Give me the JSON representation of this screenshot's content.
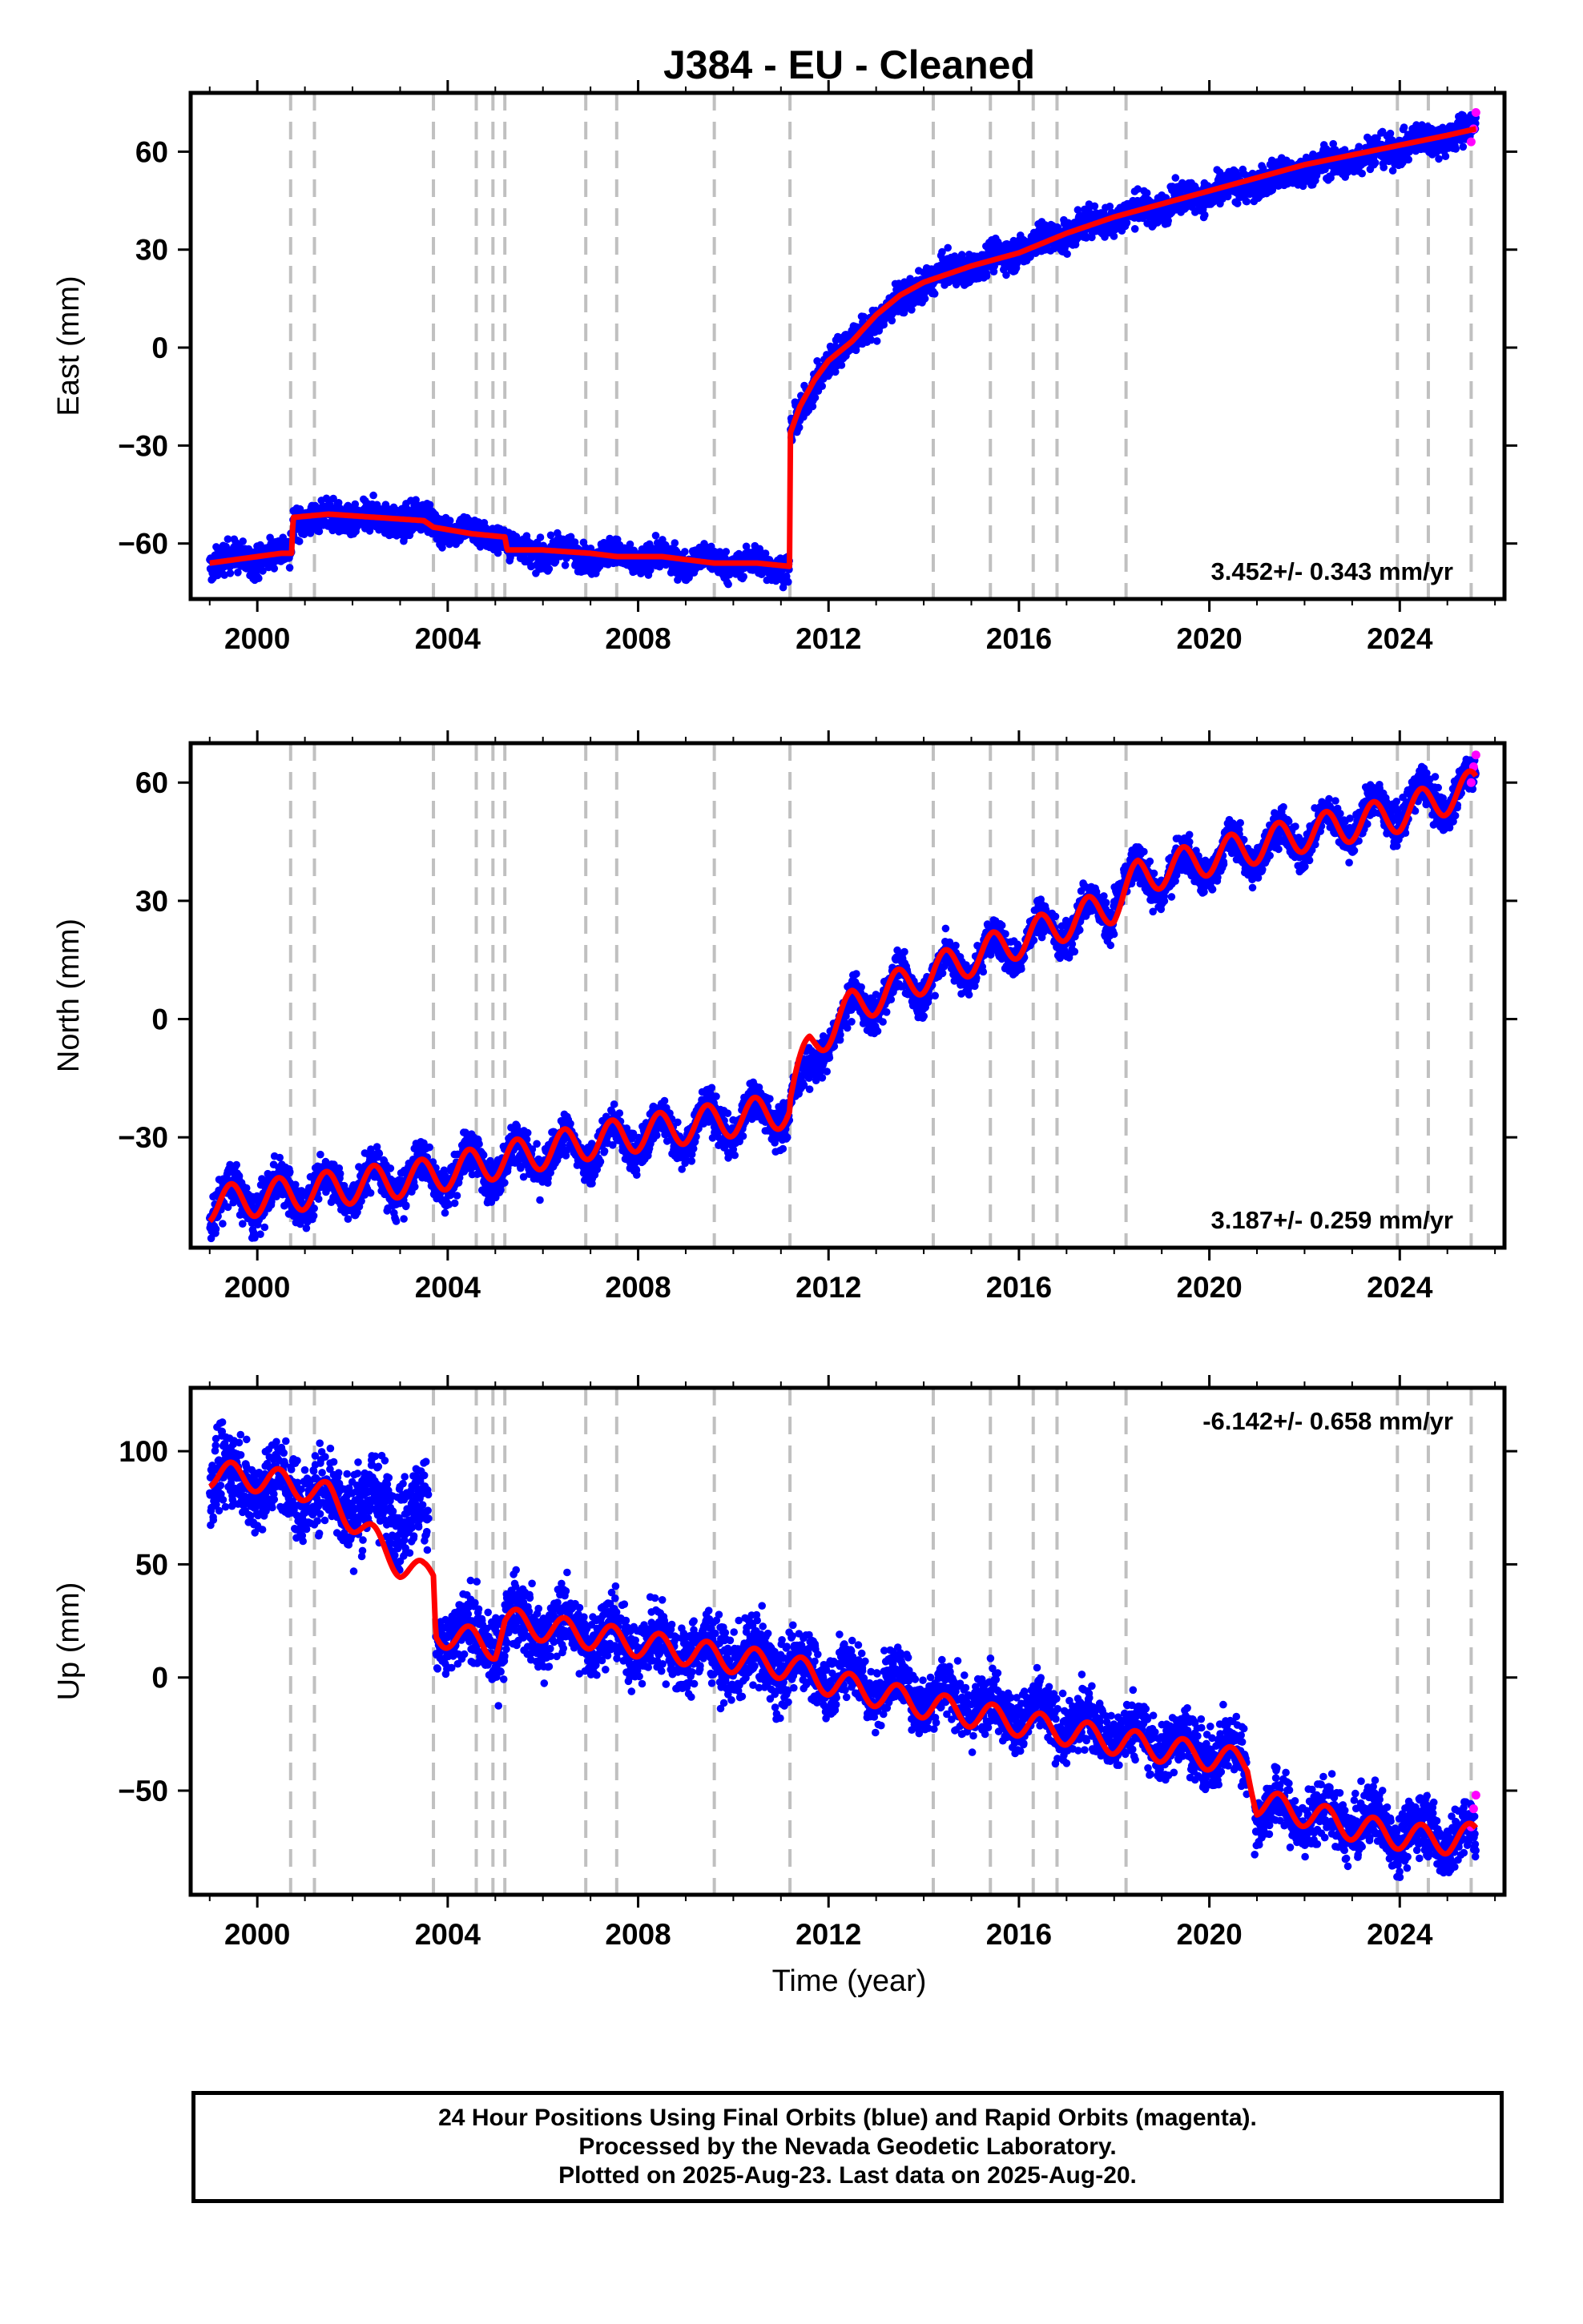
{
  "title": "J384  - EU - Cleaned",
  "xlabel": "Time (year)",
  "footer": {
    "line1": "24 Hour Positions Using Final Orbits (blue) and Rapid Orbits (magenta).",
    "line2": "Processed by the Nevada Geodetic Laboratory.",
    "line3": "Plotted on 2025-Aug-23. Last data on 2025-Aug-20."
  },
  "colors": {
    "final_orbits": "#0000ff",
    "rapid_orbits": "#ff00ff",
    "model": "#ff0000",
    "event_lines": "#c0c0c0",
    "axes": "#000000"
  },
  "chart_data": [
    {
      "type": "scatter",
      "name": "east",
      "ylabel": "East (mm)",
      "xlim": [
        1998.6,
        2026.2
      ],
      "ylim": [
        -77,
        78
      ],
      "xticks": [
        2000,
        2004,
        2008,
        2012,
        2016,
        2020,
        2024
      ],
      "yticks": [
        -60,
        -30,
        0,
        30,
        60
      ],
      "rate_label": "3.452+/- 0.343 mm/yr",
      "rate_position": "bottom-right",
      "event_lines": [
        2000.7,
        2001.2,
        2003.7,
        2004.6,
        2004.95,
        2005.2,
        2006.9,
        2007.55,
        2009.6,
        2011.19,
        2014.2,
        2015.4,
        2016.3,
        2016.8,
        2018.25,
        2023.95,
        2024.6,
        2025.5
      ],
      "model": {
        "x": [
          1999.0,
          1999.5,
          2000.0,
          2000.5,
          2000.72,
          2000.75,
          2001.5,
          2002.5,
          2003.5,
          2003.7,
          2004.5,
          2005.2,
          2005.25,
          2006.0,
          2007.0,
          2007.55,
          2008.5,
          2009.6,
          2010.5,
          2011.18,
          2011.2,
          2011.4,
          2011.7,
          2012.0,
          2012.5,
          2013.0,
          2013.5,
          2014.0,
          2015.0,
          2016.0,
          2017.0,
          2018.0,
          2019.0,
          2020.0,
          2021.0,
          2022.0,
          2023.0,
          2024.0,
          2025.0,
          2025.6
        ],
        "y": [
          -66,
          -65,
          -64,
          -63,
          -63,
          -52,
          -51,
          -52,
          -53,
          -55,
          -57,
          -58,
          -62,
          -62,
          -63,
          -64,
          -64,
          -66,
          -66,
          -67,
          -26,
          -18,
          -10,
          -4,
          2,
          10,
          16,
          20,
          25,
          29,
          35,
          40,
          44,
          48,
          52,
          56,
          59,
          62,
          65,
          67
        ]
      },
      "rapid": {
        "x": [
          2025.5,
          2025.55,
          2025.6
        ],
        "y": [
          63,
          67,
          72
        ]
      },
      "final": {
        "segments": [
          {
            "x0": 1999.0,
            "x1": 2000.72,
            "y0": -66,
            "y1": -63,
            "noise": 2.5,
            "amp": 1.5
          },
          {
            "x0": 2000.75,
            "x1": 2003.7,
            "y0": -52,
            "y1": -53,
            "noise": 2.5,
            "amp": 1.5
          },
          {
            "x0": 2003.7,
            "x1": 2005.2,
            "y0": -55,
            "y1": -58,
            "noise": 2.2,
            "amp": 1.2
          },
          {
            "x0": 2005.25,
            "x1": 2011.18,
            "y0": -62,
            "y1": -67,
            "noise": 2.2,
            "amp": 1.5
          },
          {
            "x0": 2011.2,
            "x1": 2012.0,
            "y0": -26,
            "y1": -4,
            "noise": 2.5,
            "amp": 0.5
          },
          {
            "x0": 2012.0,
            "x1": 2014.0,
            "y0": -4,
            "y1": 20,
            "noise": 2.5,
            "amp": 1.0
          },
          {
            "x0": 2014.0,
            "x1": 2018.0,
            "y0": 20,
            "y1": 40,
            "noise": 2.5,
            "amp": 1.2
          },
          {
            "x0": 2018.0,
            "x1": 2025.6,
            "y0": 40,
            "y1": 67,
            "noise": 2.5,
            "amp": 1.2
          }
        ]
      }
    },
    {
      "type": "scatter",
      "name": "north",
      "ylabel": "North (mm)",
      "xlim": [
        1998.6,
        2026.2
      ],
      "ylim": [
        -58,
        70
      ],
      "xticks": [
        2000,
        2004,
        2008,
        2012,
        2016,
        2020,
        2024
      ],
      "yticks": [
        -30,
        0,
        30,
        60
      ],
      "rate_label": "3.187+/- 0.259 mm/yr",
      "rate_position": "bottom-right",
      "event_lines": [
        2000.7,
        2001.2,
        2003.7,
        2004.6,
        2004.95,
        2005.2,
        2006.9,
        2007.55,
        2009.6,
        2011.19,
        2014.2,
        2015.4,
        2016.3,
        2016.8,
        2018.25,
        2023.95,
        2024.6,
        2025.5
      ],
      "model": {
        "x": [
          1999.0,
          2003.5,
          2007.0,
          2011.18,
          2011.2,
          2011.6,
          2012.5,
          2014.0,
          2016.0,
          2018.0,
          2018.5,
          2020.0,
          2022.0,
          2024.0,
          2025.6
        ],
        "y": [
          -47,
          -40,
          -31,
          -23,
          -20,
          -7,
          3,
          11,
          20,
          29,
          36,
          41,
          47,
          52,
          59
        ],
        "seasonal_amp": 4.5
      },
      "rapid": {
        "x": [
          2025.5,
          2025.55,
          2025.6
        ],
        "y": [
          60,
          64,
          67
        ]
      },
      "final": {
        "segments": [
          {
            "x0": 1999.0,
            "x1": 2003.5,
            "y0": -47,
            "y1": -40,
            "noise": 3.0,
            "amp": 4.5
          },
          {
            "x0": 2003.5,
            "x1": 2011.18,
            "y0": -40,
            "y1": -23,
            "noise": 2.8,
            "amp": 4.5
          },
          {
            "x0": 2011.2,
            "x1": 2012.5,
            "y0": -20,
            "y1": 3,
            "noise": 2.5,
            "amp": 2.0
          },
          {
            "x0": 2012.5,
            "x1": 2018.0,
            "y0": 3,
            "y1": 29,
            "noise": 2.5,
            "amp": 4.5
          },
          {
            "x0": 2018.0,
            "x1": 2025.6,
            "y0": 33,
            "y1": 59,
            "noise": 2.5,
            "amp": 4.5
          }
        ]
      }
    },
    {
      "type": "scatter",
      "name": "up",
      "ylabel": "Up (mm)",
      "xlabel": "Time (year)",
      "xlim": [
        1998.6,
        2026.2
      ],
      "ylim": [
        -96,
        128
      ],
      "xticks": [
        2000,
        2004,
        2008,
        2012,
        2016,
        2020,
        2024
      ],
      "yticks": [
        -50,
        0,
        50,
        100
      ],
      "rate_label": "-6.142+/- 0.658 mm/yr",
      "rate_position": "top-right",
      "event_lines": [
        2000.7,
        2001.2,
        2003.7,
        2004.6,
        2004.95,
        2005.2,
        2006.9,
        2007.55,
        2009.6,
        2011.19,
        2014.2,
        2015.4,
        2016.3,
        2016.8,
        2018.25,
        2023.95,
        2024.6,
        2025.5
      ],
      "model": {
        "x": [
          1999.0,
          2000.0,
          2001.0,
          2001.5,
          2002.5,
          2003.0,
          2003.5,
          2003.7,
          2003.75,
          2005.0,
          2005.2,
          2006.0,
          2008.0,
          2010.0,
          2011.2,
          2012.0,
          2014.0,
          2016.0,
          2018.0,
          2020.0,
          2020.8,
          2021.0,
          2022.0,
          2023.0,
          2024.0,
          2025.0,
          2025.6
        ],
        "y": [
          90,
          88,
          84,
          80,
          60,
          50,
          45,
          45,
          20,
          14,
          25,
          22,
          15,
          8,
          5,
          -2,
          -12,
          -20,
          -28,
          -35,
          -38,
          -55,
          -60,
          -66,
          -70,
          -72,
          -70
        ],
        "seasonal_amp": 6
      },
      "rapid": {
        "x": [
          2025.5,
          2025.55,
          2025.6
        ],
        "y": [
          -66,
          -58,
          -52
        ]
      },
      "final": {
        "segments": [
          {
            "x0": 1999.0,
            "x1": 2001.5,
            "y0": 90,
            "y1": 80,
            "noise": 9,
            "amp": 6
          },
          {
            "x0": 2001.5,
            "x1": 2003.6,
            "y0": 80,
            "y1": 72,
            "noise": 10,
            "amp": 6
          },
          {
            "x0": 2003.75,
            "x1": 2005.2,
            "y0": 20,
            "y1": 15,
            "noise": 8,
            "amp": 6
          },
          {
            "x0": 2005.2,
            "x1": 2011.2,
            "y0": 25,
            "y1": 5,
            "noise": 8,
            "amp": 6
          },
          {
            "x0": 2011.2,
            "x1": 2020.8,
            "y0": 5,
            "y1": -36,
            "noise": 7,
            "amp": 6
          },
          {
            "x0": 2020.95,
            "x1": 2025.6,
            "y0": -58,
            "y1": -72,
            "noise": 7,
            "amp": 6
          }
        ]
      }
    }
  ]
}
